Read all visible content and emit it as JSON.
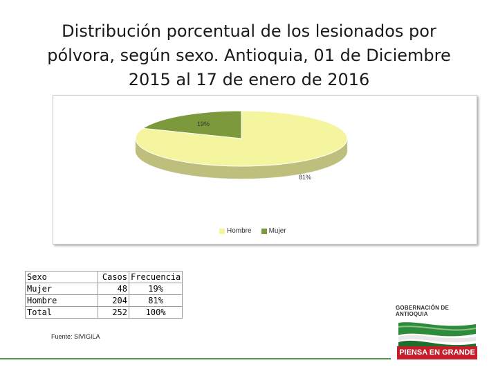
{
  "slide": {
    "title": "Distribución porcentual de los lesionados por pólvora, según sexo. Antioquia, 01 de Diciembre 2015 al 17 de enero de 2016",
    "source": "Fuente: SIVIGILA"
  },
  "chart_data": {
    "type": "pie",
    "title": "",
    "categories": [
      "Hombre",
      "Mujer"
    ],
    "values": [
      81,
      19
    ],
    "labels": [
      "81%",
      "19%"
    ],
    "colors": [
      "#f5f5a0",
      "#7c9a3c"
    ],
    "legend_position": "bottom"
  },
  "table": {
    "headers": [
      "Sexo",
      "Casos",
      "Frecuencia"
    ],
    "rows": [
      [
        "Mujer",
        "48",
        "19%"
      ],
      [
        "Hombre",
        "204",
        "81%"
      ],
      [
        "Total",
        "252",
        "100%"
      ]
    ]
  },
  "logo": {
    "top_text": "GOBERNACIÓN DE ANTIOQUIA",
    "bottom_text": "PIENSA EN GRANDE"
  }
}
